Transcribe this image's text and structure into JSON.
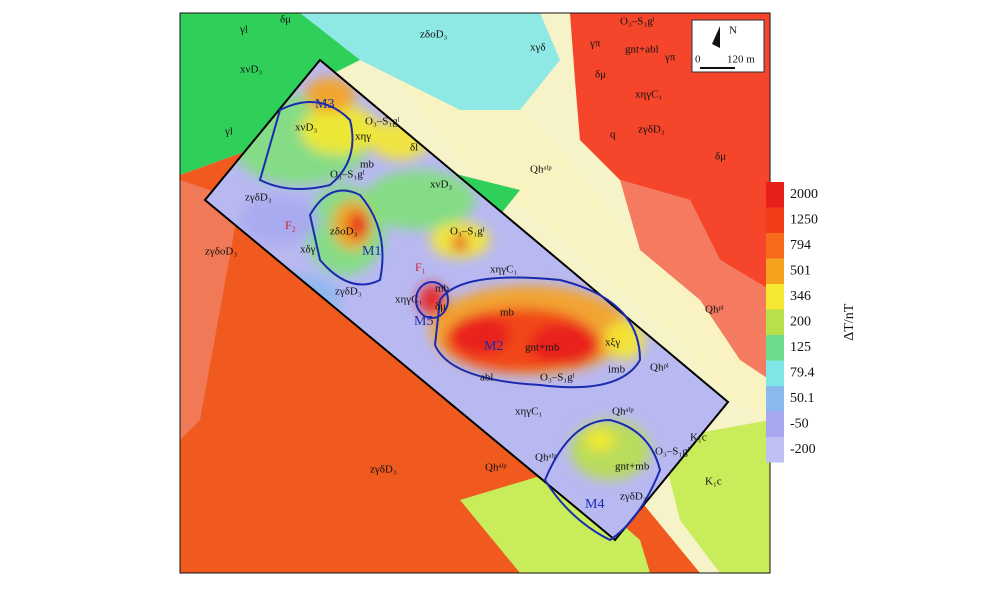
{
  "units": [
    "γl",
    "δμ",
    "zδoD₃",
    "xγδ",
    "O₃–S₁gˡ",
    "γπ",
    "gnt+abl",
    "γπ",
    "δμ",
    "xηγC₁",
    "zγδD₃",
    "q",
    "δμ",
    "xνD₃",
    "xνD₃",
    "O₃–S₁gˡ",
    "xηγ",
    "δl",
    "γl",
    "mb",
    "O₃–S₁gˡ",
    "xνD₃",
    "Qhᵃˡᵖ",
    "zγδD₃",
    "zδoD₃",
    "O₃–S₁gˡ",
    "zγδoD₃",
    "xδγ",
    "xηγC₁",
    "zγδD₃",
    "mb",
    "δμ",
    "xηγC₁",
    "mb",
    "gnt+mb",
    "xξγ",
    "abl",
    "O₃–S₁gˡ",
    "imb",
    "Qhᵖˡ",
    "Qhᵖˡ",
    "xηγC₁",
    "Qhᵃˡᵖ",
    "O₃–S₁gˡ",
    "K₁c",
    "gnt+mb",
    "Qhᵃˡᵖ",
    "Qhᵃˡᵖ",
    "zγδD₃",
    "K₁c",
    "zγδD₃"
  ],
  "zones": [
    "M1",
    "M2",
    "M3",
    "M4",
    "M5"
  ],
  "faults": [
    "F₁",
    "F₂"
  ],
  "north": "N",
  "scale": {
    "start": "0",
    "end": "120 m"
  },
  "legend": {
    "title": "ΔT/nT",
    "values": [
      2000,
      1250,
      794,
      501,
      346,
      200,
      125,
      79.4,
      50.1,
      -50,
      -200
    ],
    "colors": [
      "#e8201c",
      "#f23d1a",
      "#f76a1c",
      "#f7a21e",
      "#f5e830",
      "#b8e04a",
      "#6fdc8c",
      "#7ee6e6",
      "#8cb8f0",
      "#a8a8f0",
      "#c0c0f4"
    ]
  }
}
